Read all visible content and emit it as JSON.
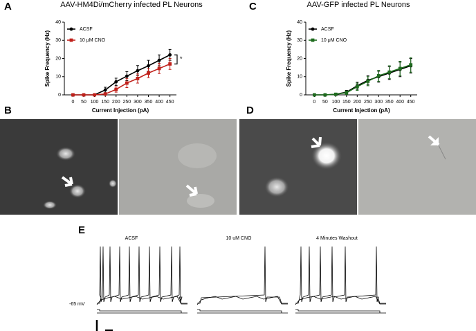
{
  "chart_data": [
    {
      "type": "line",
      "title": "AAV-HM4Di/mCherry infected PL Neurons",
      "x_label": "Current Injection (pA)",
      "y_label": "Spike Frequency (Hz)",
      "x": [
        0,
        50,
        100,
        150,
        200,
        250,
        300,
        350,
        400,
        450
      ],
      "series": [
        {
          "name": "ACSF",
          "color": "#000000",
          "marker": "circle",
          "values": [
            0,
            0,
            0,
            2.7,
            7.2,
            10.3,
            13.3,
            16,
            19,
            22
          ],
          "errors": [
            0,
            0,
            0,
            1.5,
            2,
            2.5,
            2.8,
            3,
            3,
            3
          ]
        },
        {
          "name": "10 μM CNO",
          "color": "#c0211b",
          "marker": "square",
          "values": [
            0,
            0,
            0,
            0.5,
            3,
            6.5,
            9,
            12,
            14.5,
            17
          ],
          "errors": [
            0,
            0,
            0,
            0.5,
            1.5,
            2.5,
            2.5,
            2.5,
            2.8,
            3
          ]
        }
      ],
      "xlim": [
        -40,
        480
      ],
      "ylim": [
        0,
        40
      ],
      "xticks": [
        0,
        50,
        100,
        150,
        200,
        250,
        300,
        350,
        400,
        450
      ],
      "yticks": [
        0,
        10,
        20,
        30,
        40
      ],
      "annotation": "*"
    },
    {
      "type": "line",
      "title": "AAV-GFP infected PL Neurons",
      "x_label": "Current Injection (pA)",
      "y_label": "Spike Frequency (Hz)",
      "x": [
        0,
        50,
        100,
        150,
        200,
        250,
        300,
        350,
        400,
        450
      ],
      "series": [
        {
          "name": "ACSF",
          "color": "#000000",
          "marker": "circle",
          "values": [
            0,
            0,
            0.3,
            1.5,
            5,
            8,
            10,
            12,
            14,
            16
          ],
          "errors": [
            0,
            0,
            0.5,
            1,
            2,
            2.5,
            3,
            3.5,
            4,
            4
          ]
        },
        {
          "name": "10 μM CNO",
          "color": "#1e6b1e",
          "marker": "square",
          "values": [
            0,
            0,
            0.3,
            1.2,
            4.5,
            7.5,
            10.5,
            12.5,
            14.5,
            16.5
          ],
          "errors": [
            0,
            0,
            0.5,
            1,
            2,
            2.5,
            3,
            3.5,
            4,
            4
          ]
        }
      ],
      "xlim": [
        -40,
        480
      ],
      "ylim": [
        0,
        40
      ],
      "xticks": [
        0,
        50,
        100,
        150,
        200,
        250,
        300,
        350,
        400,
        450
      ],
      "yticks": [
        0,
        10,
        20,
        30,
        40
      ]
    }
  ],
  "panels": {
    "a": "A",
    "b": "B",
    "c": "C",
    "d": "D",
    "e": "E"
  },
  "traces": {
    "labels": [
      "ACSF",
      "10 uM CNO",
      "4 Minutes Washout"
    ],
    "baseline": "-65 mV"
  }
}
